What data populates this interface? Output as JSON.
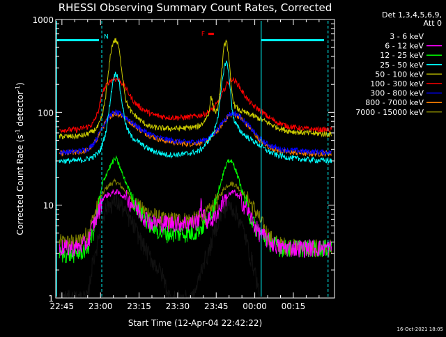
{
  "chart_data": {
    "type": "line",
    "title": "RHESSI Observing Summary Count Rates, Corrected",
    "xlabel": "Start Time (12-Apr-04 22:42:22)",
    "ylabel_main": "Corrected Count Rate (s",
    "ylabel_sup1": "-1",
    "ylabel_mid": " detector",
    "ylabel_sup2": "-1",
    "ylabel_end": ")",
    "yscale": "log",
    "ylim": [
      1,
      1000
    ],
    "xlim_minutes": [
      -17.4,
      91
    ],
    "x_ticks": [
      {
        "label": "22:45",
        "minute": -15
      },
      {
        "label": "23:00",
        "minute": 0
      },
      {
        "label": "23:15",
        "minute": 15
      },
      {
        "label": "23:30",
        "minute": 30
      },
      {
        "label": "23:45",
        "minute": 45
      },
      {
        "label": "00:00",
        "minute": 60
      },
      {
        "label": "00:15",
        "minute": 75
      }
    ],
    "y_ticks": [
      {
        "label": "1",
        "value": 1
      },
      {
        "label": "10",
        "value": 10
      },
      {
        "label": "100",
        "value": 100
      },
      {
        "label": "1000",
        "value": 1000
      }
    ],
    "legend_header": [
      "Det 1,3,4,5,6,9,",
      "Att 0"
    ],
    "legend_position": "right",
    "series": [
      {
        "name": "3 - 6 keV",
        "color": "#000000",
        "x": [
          -16,
          -9,
          -5,
          -3,
          -1,
          0,
          1,
          3,
          6,
          8,
          10,
          13,
          16,
          20,
          24,
          27,
          30,
          33,
          36,
          38,
          40,
          42,
          44,
          46,
          48,
          50,
          52,
          54,
          56,
          58,
          60,
          62
        ],
        "y": [
          1,
          1,
          1,
          2.5,
          4,
          6,
          8,
          10,
          11,
          10,
          8,
          6,
          4,
          2.6,
          1.8,
          1,
          1,
          1,
          1,
          1.5,
          2.5,
          3,
          5,
          7,
          9,
          10,
          9,
          7,
          5,
          3,
          2,
          1
        ]
      },
      {
        "name": "6 - 12 keV",
        "color": "#ff00ff",
        "x": [
          -16,
          -9,
          -5,
          -3,
          -1,
          0,
          1,
          3,
          6,
          8,
          10,
          13,
          16,
          20,
          24,
          28,
          32,
          36,
          38,
          39,
          40,
          41,
          42,
          44,
          46,
          48,
          50,
          52,
          54,
          56,
          58,
          60,
          62,
          64,
          66,
          68,
          70,
          75,
          80,
          90
        ],
        "y": [
          3.5,
          3.5,
          4,
          6,
          8,
          10,
          12,
          13,
          14,
          13,
          12,
          10,
          8,
          6.5,
          6.5,
          6.5,
          6.5,
          6.5,
          7,
          10,
          8,
          7,
          7,
          7,
          9,
          11,
          13,
          14,
          12,
          10,
          8,
          6,
          5,
          4.5,
          4,
          3.8,
          3.5,
          3.5,
          3.5,
          3.5
        ]
      },
      {
        "name": "12 - 25 keV",
        "color": "#00ff00",
        "x": [
          -16,
          -9,
          -5,
          -3,
          -1,
          0,
          1,
          3,
          5,
          6,
          7,
          9,
          11,
          13,
          16,
          20,
          24,
          28,
          32,
          36,
          38,
          40,
          42,
          44,
          46,
          48,
          50,
          52,
          54,
          56,
          58,
          60,
          62,
          64,
          66,
          68,
          70,
          75,
          80,
          90
        ],
        "y": [
          3,
          3,
          3.5,
          5,
          9,
          13,
          18,
          24,
          30,
          32,
          28,
          20,
          15,
          11,
          8,
          6,
          5,
          5,
          5,
          5,
          5.5,
          6,
          7,
          10,
          15,
          23,
          31,
          27,
          18,
          12,
          8,
          6,
          5,
          4.5,
          4,
          3.8,
          3.5,
          3.5,
          3.5,
          3.5
        ]
      },
      {
        "name": "25 - 50 keV",
        "color": "#00ffff",
        "x": [
          -16,
          -10,
          -6,
          -3,
          -1,
          0,
          1,
          2,
          3,
          4,
          5,
          6,
          7,
          8,
          9,
          10,
          12,
          14,
          16,
          19,
          22,
          26,
          30,
          34,
          38,
          40,
          42,
          44,
          46,
          47,
          48,
          49,
          50,
          51,
          52,
          54,
          56,
          58,
          60,
          62,
          64,
          66,
          68,
          70,
          72,
          75,
          80,
          90
        ],
        "y": [
          30,
          30,
          31,
          33,
          36,
          40,
          48,
          60,
          90,
          150,
          230,
          270,
          230,
          150,
          100,
          70,
          55,
          50,
          45,
          40,
          37,
          35,
          35,
          36,
          38,
          42,
          50,
          60,
          100,
          180,
          300,
          360,
          250,
          120,
          80,
          65,
          57,
          52,
          48,
          44,
          40,
          37,
          35,
          34,
          33,
          32,
          31,
          30
        ]
      },
      {
        "name": "50 - 100 keV",
        "color": "#cccc00",
        "x": [
          -16,
          -10,
          -6,
          -3,
          -1,
          0,
          1,
          2,
          3,
          4,
          5,
          6,
          7,
          8,
          9,
          10,
          12,
          14,
          16,
          19,
          22,
          26,
          30,
          34,
          38,
          40,
          42,
          43,
          44,
          45,
          46,
          47,
          48,
          49,
          50,
          51,
          52,
          54,
          56,
          58,
          60,
          62,
          64,
          66,
          68,
          70,
          72,
          75,
          80,
          90
        ],
        "y": [
          55,
          55,
          57,
          62,
          70,
          80,
          100,
          150,
          250,
          450,
          580,
          600,
          520,
          330,
          200,
          130,
          100,
          90,
          80,
          70,
          68,
          67,
          67,
          68,
          70,
          78,
          95,
          150,
          110,
          100,
          120,
          250,
          500,
          620,
          350,
          170,
          120,
          105,
          100,
          95,
          90,
          85,
          80,
          75,
          70,
          67,
          64,
          62,
          60,
          58
        ]
      },
      {
        "name": "100 - 300 keV",
        "color": "#ff0000",
        "x": [
          -16,
          -9,
          -5,
          -3,
          -1,
          0,
          1,
          3,
          5,
          7,
          9,
          11,
          13,
          16,
          20,
          24,
          28,
          32,
          36,
          40,
          43,
          45,
          47,
          49,
          51,
          53,
          55,
          57,
          59,
          61,
          63,
          65,
          68,
          72,
          78,
          85,
          90
        ],
        "y": [
          65,
          65,
          70,
          75,
          100,
          130,
          170,
          210,
          230,
          225,
          200,
          160,
          130,
          110,
          95,
          90,
          88,
          88,
          90,
          95,
          105,
          120,
          150,
          200,
          230,
          210,
          170,
          140,
          120,
          110,
          100,
          90,
          80,
          72,
          67,
          65,
          65
        ]
      },
      {
        "name": "300 - 800 keV",
        "color": "#0000ff",
        "x": [
          -16,
          -9,
          -5,
          -3,
          -1,
          0,
          2,
          4,
          6,
          8,
          10,
          13,
          16,
          20,
          24,
          28,
          32,
          36,
          40,
          43,
          46,
          48,
          50,
          52,
          54,
          56,
          58,
          60,
          62,
          64,
          66,
          68,
          70,
          75,
          80,
          90
        ],
        "y": [
          37,
          38,
          40,
          45,
          55,
          65,
          80,
          95,
          100,
          95,
          88,
          75,
          65,
          57,
          52,
          50,
          48,
          48,
          50,
          55,
          68,
          82,
          95,
          98,
          92,
          80,
          70,
          60,
          52,
          47,
          44,
          42,
          40,
          39,
          38,
          37
        ]
      },
      {
        "name": "800 - 7000 keV",
        "color": "#ff8000",
        "x": [
          -16,
          -9,
          -5,
          -3,
          -1,
          0,
          2,
          4,
          6,
          8,
          10,
          13,
          16,
          20,
          24,
          28,
          32,
          36,
          40,
          43,
          46,
          48,
          50,
          52,
          54,
          56,
          58,
          60,
          62,
          64,
          66,
          68,
          70,
          75,
          80,
          90
        ],
        "y": [
          36,
          37,
          39,
          44,
          54,
          63,
          78,
          93,
          98,
          93,
          86,
          73,
          63,
          55,
          50,
          48,
          46,
          46,
          48,
          53,
          66,
          80,
          93,
          96,
          90,
          78,
          68,
          58,
          50,
          45,
          42,
          40,
          38,
          37,
          36,
          36
        ]
      },
      {
        "name": "7000 - 15000 keV",
        "color": "#808000",
        "x": [
          -16,
          -9,
          -5,
          -3,
          -1,
          0,
          2,
          4,
          6,
          8,
          10,
          13,
          16,
          20,
          24,
          28,
          32,
          36,
          40,
          43,
          46,
          48,
          50,
          52,
          54,
          56,
          58,
          60,
          62,
          64,
          66,
          68,
          70,
          75,
          80,
          90
        ],
        "y": [
          4,
          4,
          5,
          7,
          10,
          12,
          15,
          17,
          18,
          16,
          14,
          11,
          9,
          8,
          7,
          7,
          7,
          7,
          7.5,
          9,
          12,
          15,
          17,
          17,
          15,
          13,
          11,
          9,
          7,
          5.5,
          4.5,
          4,
          3.8,
          3.6,
          3.5,
          3.5
        ]
      }
    ],
    "annotations": [
      {
        "label": "N",
        "color": "#00ffff",
        "minute": 0.5,
        "value": 600
      },
      {
        "label": "F",
        "color": "#ff0000",
        "minute": 43,
        "value": 700
      }
    ],
    "footer_timestamp": "16-Oct-2021 18:05"
  }
}
